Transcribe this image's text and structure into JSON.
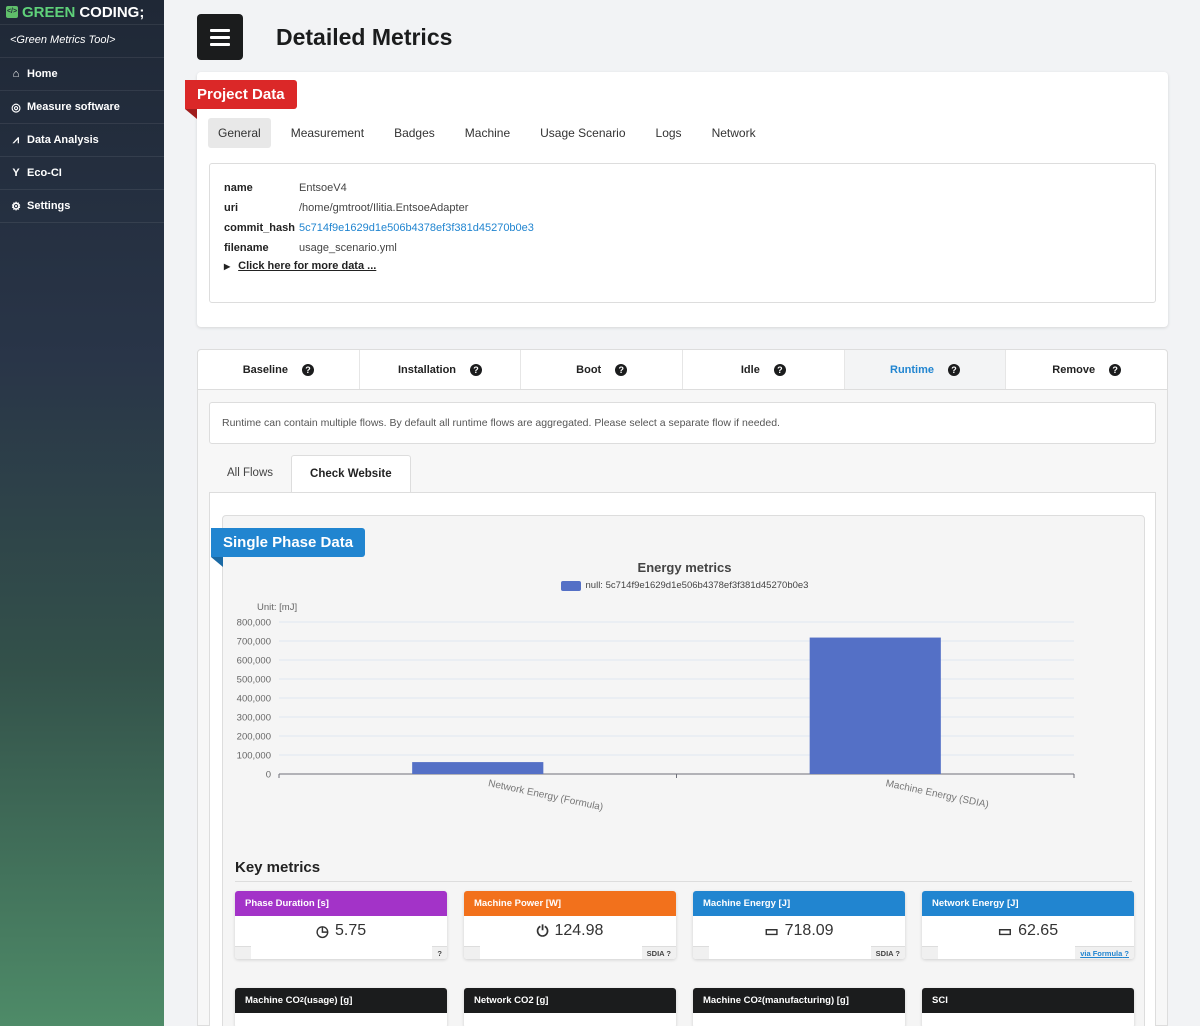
{
  "sidebar": {
    "brand_prefix": "GREEN",
    "brand_suffix": "CODING;",
    "tagline": "<Green Metrics Tool>",
    "items": [
      {
        "label": "Home",
        "icon": "home-icon"
      },
      {
        "label": "Measure software",
        "icon": "target-icon"
      },
      {
        "label": "Data Analysis",
        "icon": "chart-line-icon"
      },
      {
        "label": "Eco-CI",
        "icon": "seedling-icon"
      },
      {
        "label": "Settings",
        "icon": "cogs-icon"
      }
    ]
  },
  "header": {
    "title": "Detailed Metrics"
  },
  "project": {
    "ribbon": "Project Data",
    "tabs": [
      "General",
      "Measurement",
      "Badges",
      "Machine",
      "Usage Scenario",
      "Logs",
      "Network"
    ],
    "fields": {
      "name_key": "name",
      "name_val": "EntsoeV4",
      "uri_key": "uri",
      "uri_val": "/home/gmtroot/Ilitia.EntsoeAdapter",
      "commit_key": "commit_hash",
      "commit_val": "5c714f9e1629d1e506b4378ef3f381d45270b0e3",
      "file_key": "filename",
      "file_val": "usage_scenario.yml"
    },
    "more_label": "Click here for more data ..."
  },
  "phases": {
    "steps": [
      "Baseline",
      "Installation",
      "Boot",
      "Idle",
      "Runtime",
      "Remove"
    ],
    "active": "Runtime",
    "note": "Runtime can contain multiple flows. By default all runtime flows are aggregated. Please select a separate flow if needed.",
    "flow_tabs": [
      "All Flows",
      "Check Website"
    ]
  },
  "single_phase": {
    "ribbon": "Single Phase Data",
    "unit_label": "Unit: [mJ]"
  },
  "chart_data": {
    "type": "bar",
    "title": "Energy metrics",
    "categories": [
      "Network Energy (Formula)",
      "Machine Energy (SDIA)"
    ],
    "series": [
      {
        "name": "null: 5c714f9e1629d1e506b4378ef3f381d45270b0e3",
        "values": [
          62650,
          718090
        ],
        "color": "#5470c6"
      }
    ],
    "yticks": [
      "0",
      "100,000",
      "200,000",
      "300,000",
      "400,000",
      "500,000",
      "600,000",
      "700,000",
      "800,000"
    ],
    "ylim": [
      0,
      800000
    ],
    "grid": true,
    "legend": "top-center"
  },
  "key_metrics": {
    "title": "Key metrics",
    "cards": [
      {
        "title": "Phase Duration [s]",
        "value": "5.75",
        "icon": "clock-icon",
        "color": "#a333c8",
        "footer": ""
      },
      {
        "title": "Machine Power [W]",
        "value": "124.98",
        "icon": "power-icon",
        "color": "#f2711c",
        "footer": "SDIA"
      },
      {
        "title": "Machine Energy [J]",
        "value": "718.09",
        "icon": "battery-icon",
        "color": "#2185d0",
        "footer": "SDIA"
      },
      {
        "title": "Network Energy [J]",
        "value": "62.65",
        "icon": "battery-icon",
        "color": "#2185d0",
        "footer": "via Formula"
      }
    ],
    "cards2": [
      {
        "title_a": "Machine CO",
        "title_sub": "2",
        "title_b": " (usage) [g]"
      },
      {
        "title_a": "Network CO2 [g]",
        "title_sub": "",
        "title_b": ""
      },
      {
        "title_a": "Machine CO",
        "title_sub": "2",
        "title_b": " (manufacturing) [g]"
      },
      {
        "title_a": "SCI",
        "title_sub": "",
        "title_b": ""
      }
    ]
  }
}
